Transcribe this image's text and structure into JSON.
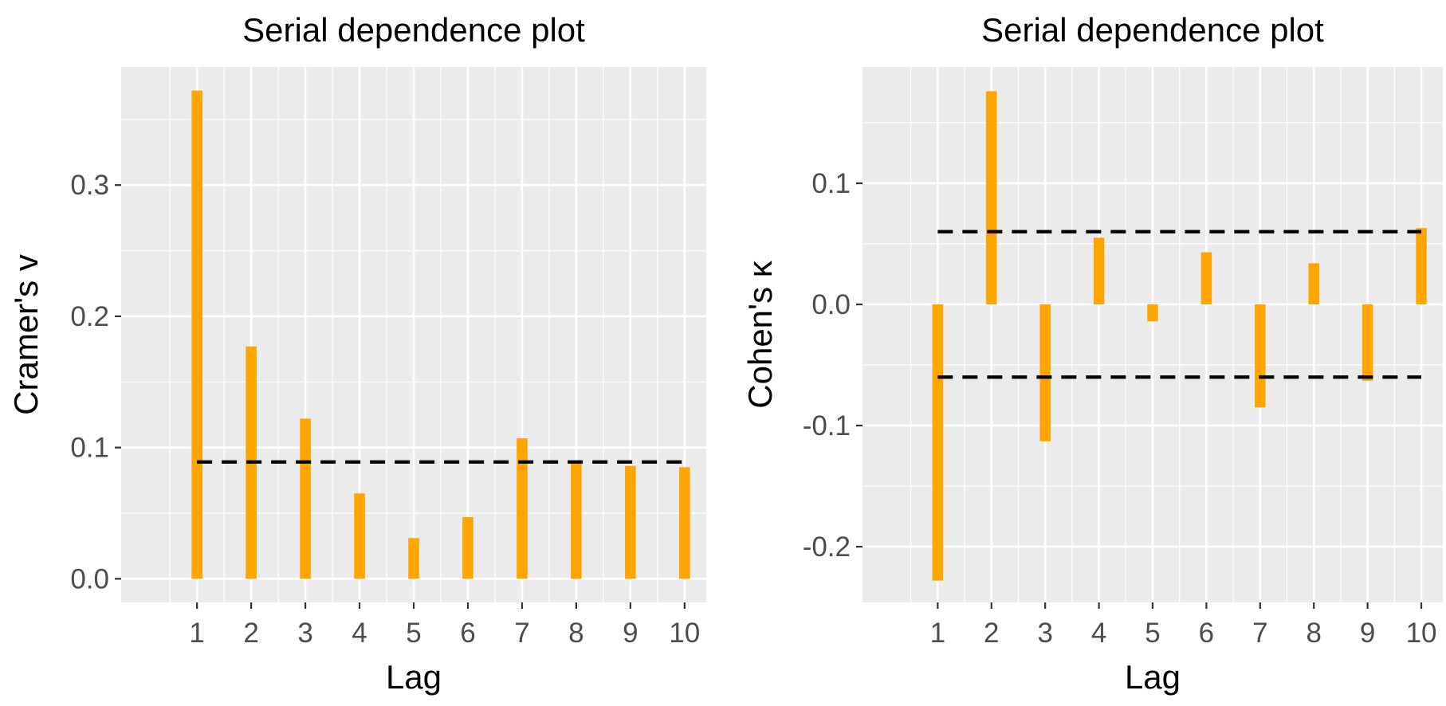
{
  "colors": {
    "panel_background": "#ebebeb",
    "grid": "#ffffff",
    "bar": "#ffa500",
    "threshold_line": "#000000",
    "tick_text": "#4d4d4d",
    "title_text": "#000000"
  },
  "chart_data": [
    {
      "type": "bar",
      "title": "Serial dependence plot",
      "xlabel": "Lag",
      "ylabel": "Cramer's v",
      "categories": [
        "1",
        "2",
        "3",
        "4",
        "5",
        "6",
        "7",
        "8",
        "9",
        "10"
      ],
      "values": [
        0.372,
        0.177,
        0.122,
        0.065,
        0.031,
        0.047,
        0.107,
        0.088,
        0.086,
        0.085
      ],
      "ylim": [
        -0.018,
        0.39
      ],
      "yticks": [
        0.0,
        0.1,
        0.2,
        0.3
      ],
      "ytick_labels": [
        "0.0",
        "0.1",
        "0.2",
        "0.3"
      ],
      "thresholds": [
        0.089
      ],
      "grid": true
    },
    {
      "type": "bar",
      "title": "Serial dependence plot",
      "xlabel": "Lag",
      "ylabel": "Cohen's κ",
      "categories": [
        "1",
        "2",
        "3",
        "4",
        "5",
        "6",
        "7",
        "8",
        "9",
        "10"
      ],
      "values": [
        -0.228,
        0.176,
        -0.113,
        0.055,
        -0.014,
        0.043,
        -0.085,
        0.034,
        -0.063,
        0.063
      ],
      "ylim": [
        -0.246,
        0.196
      ],
      "yticks": [
        -0.2,
        -0.1,
        0.0,
        0.1
      ],
      "ytick_labels": [
        "-0.2",
        "-0.1",
        "0.0",
        "0.1"
      ],
      "thresholds": [
        0.06,
        -0.06
      ],
      "grid": true
    }
  ]
}
